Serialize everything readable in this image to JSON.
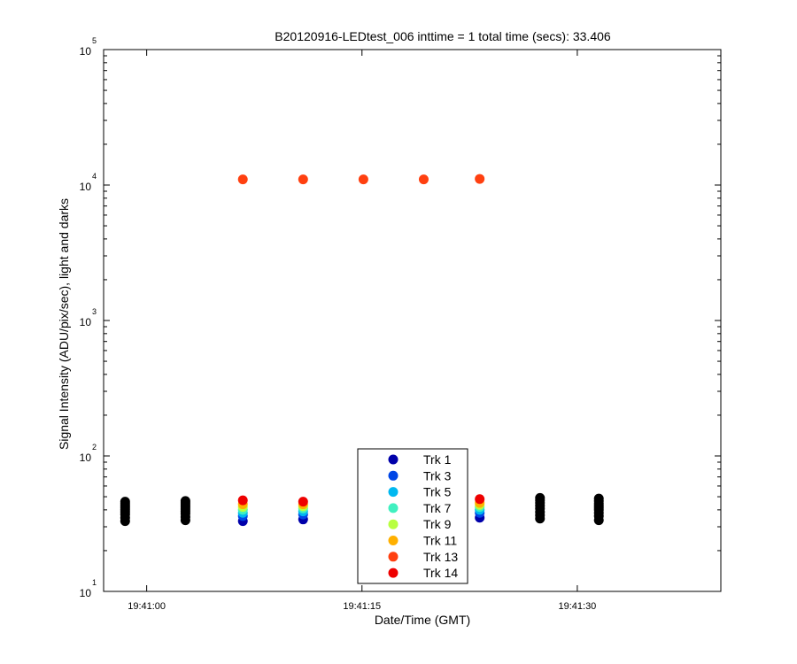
{
  "chart_data": {
    "type": "scatter",
    "title": "B20120916-LEDtest_006 inttime = 1 total time (secs): 33.406",
    "xlabel": "Date/Time (GMT)",
    "ylabel": "Signal Intensity (ADU/pix/sec), light and darks",
    "x_axis": {
      "type": "time",
      "range": [
        "19:40:57",
        "19:41:40"
      ],
      "ticks": [
        "19:41:00",
        "19:41:15",
        "19:41:30"
      ]
    },
    "y_axis": {
      "scale": "log",
      "range": [
        10,
        100000
      ],
      "ticks": [
        {
          "value": 10,
          "label": "10",
          "exp": "1"
        },
        {
          "value": 100,
          "label": "10",
          "exp": "2"
        },
        {
          "value": 1000,
          "label": "10",
          "exp": "3"
        },
        {
          "value": 10000,
          "label": "10",
          "exp": "4"
        },
        {
          "value": 100000,
          "label": "10",
          "exp": "5"
        }
      ]
    },
    "grid": false,
    "legend_position": "bottom-center",
    "series": [
      {
        "name": "Trk 1",
        "color": "#0000aa",
        "points": [
          [
            "19:41:06.7",
            33
          ],
          [
            "19:41:10.9",
            34
          ],
          [
            "19:41:23.2",
            35
          ]
        ]
      },
      {
        "name": "Trk 3",
        "color": "#0046e6",
        "points": [
          [
            "19:41:06.7",
            36
          ],
          [
            "19:41:10.9",
            37
          ],
          [
            "19:41:23.2",
            38
          ]
        ]
      },
      {
        "name": "Trk 5",
        "color": "#00b8f0",
        "points": [
          [
            "19:41:06.7",
            38
          ],
          [
            "19:41:10.9",
            39
          ],
          [
            "19:41:23.2",
            40
          ]
        ]
      },
      {
        "name": "Trk 7",
        "color": "#40f0c0",
        "points": [
          [
            "19:41:06.7",
            40
          ],
          [
            "19:41:10.9",
            41
          ],
          [
            "19:41:23.2",
            42
          ]
        ]
      },
      {
        "name": "Trk 9",
        "color": "#b8ff40",
        "points": [
          [
            "19:41:06.7",
            42
          ],
          [
            "19:41:10.9",
            42.5
          ],
          [
            "19:41:23.2",
            43.5
          ]
        ]
      },
      {
        "name": "Trk 11",
        "color": "#ffb000",
        "points": [
          [
            "19:41:06.7",
            44
          ],
          [
            "19:41:10.9",
            44
          ],
          [
            "19:41:23.2",
            45
          ]
        ]
      },
      {
        "name": "Trk 13",
        "color": "#ff4010",
        "points": [
          [
            "19:41:06.7",
            11000
          ],
          [
            "19:41:10.9",
            11000
          ],
          [
            "19:41:15.1",
            11000
          ],
          [
            "19:41:19.3",
            11000
          ],
          [
            "19:41:23.2",
            11100
          ]
        ]
      },
      {
        "name": "Trk 14",
        "color": "#ee0000",
        "points": [
          [
            "19:41:06.7",
            47
          ],
          [
            "19:41:10.9",
            46
          ],
          [
            "19:41:23.2",
            48
          ]
        ]
      },
      {
        "color": "#000000",
        "points": [
          [
            "19:40:58.5",
            33
          ],
          [
            "19:40:58.5",
            35
          ],
          [
            "19:40:58.5",
            37
          ],
          [
            "19:40:58.5",
            38.5
          ],
          [
            "19:40:58.5",
            40
          ],
          [
            "19:40:58.5",
            41.5
          ],
          [
            "19:40:58.5",
            43
          ],
          [
            "19:40:58.5",
            44.5
          ],
          [
            "19:40:58.5",
            46
          ],
          [
            "19:41:02.7",
            33.5
          ],
          [
            "19:41:02.7",
            35.5
          ],
          [
            "19:41:02.7",
            37.5
          ],
          [
            "19:41:02.7",
            39
          ],
          [
            "19:41:02.7",
            40.5
          ],
          [
            "19:41:02.7",
            42
          ],
          [
            "19:41:02.7",
            43.5
          ],
          [
            "19:41:02.7",
            45
          ],
          [
            "19:41:02.7",
            46.5
          ],
          [
            "19:41:27.4",
            34.5
          ],
          [
            "19:41:27.4",
            36.5
          ],
          [
            "19:41:27.4",
            38.5
          ],
          [
            "19:41:27.4",
            41
          ],
          [
            "19:41:27.4",
            43
          ],
          [
            "19:41:27.4",
            45
          ],
          [
            "19:41:27.4",
            47
          ],
          [
            "19:41:27.4",
            49
          ],
          [
            "19:41:31.5",
            33.5
          ],
          [
            "19:41:31.5",
            36
          ],
          [
            "19:41:31.5",
            38
          ],
          [
            "19:41:31.5",
            40
          ],
          [
            "19:41:31.5",
            41.5
          ],
          [
            "19:41:31.5",
            43
          ],
          [
            "19:41:31.5",
            44.5
          ],
          [
            "19:41:31.5",
            46.5
          ],
          [
            "19:41:31.5",
            48.5
          ]
        ]
      }
    ]
  }
}
